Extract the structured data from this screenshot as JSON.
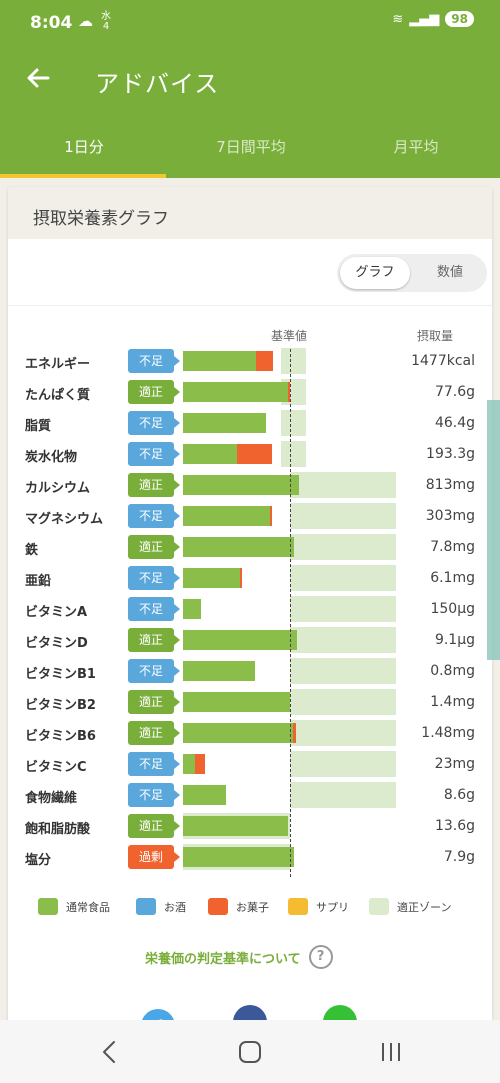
{
  "status_bar": {
    "time": "8:04",
    "weather": "☁",
    "day": "水",
    "day_num": "4",
    "wifi": "≋",
    "signal": "▂▄▆",
    "battery": "98"
  },
  "app_bar": {
    "title": "アドバイス"
  },
  "tabs": [
    {
      "label": "1日分",
      "active": true
    },
    {
      "label": "7日間平均",
      "active": false
    },
    {
      "label": "月平均",
      "active": false
    }
  ],
  "card": {
    "title": "摂取栄養素グラフ",
    "toggle": {
      "graph_label": "グラフ",
      "number_label": "数値",
      "selected": "グラフ"
    },
    "col_reference": "基準値",
    "col_intake": "摂取量"
  },
  "colors": {
    "food": "#8bbd4a",
    "alcohol": "#5aa7db",
    "snack": "#f0632f",
    "supplement": "#f5bc32",
    "zone": "#dcebcd",
    "brand": "#7aae3b",
    "over": "#f0632f"
  },
  "nutrients": [
    {
      "name": "エネルギー",
      "status": "不足",
      "status_type": "lack",
      "amount": "1477kcal",
      "food": 0.68,
      "snack": 0.16,
      "zone": [
        0.92,
        1.15
      ]
    },
    {
      "name": "たんぱく質",
      "status": "適正",
      "status_type": "ok",
      "amount": "77.6g",
      "food": 0.98,
      "snack": 0.01,
      "zone": [
        0.92,
        1.15
      ]
    },
    {
      "name": "脂質",
      "status": "不足",
      "status_type": "lack",
      "amount": "46.4g",
      "food": 0.78,
      "snack": 0.0,
      "zone": [
        0.92,
        1.15
      ]
    },
    {
      "name": "炭水化物",
      "status": "不足",
      "status_type": "lack",
      "amount": "193.3g",
      "food": 0.5,
      "snack": 0.33,
      "zone": [
        0.92,
        1.15
      ]
    },
    {
      "name": "カルシウム",
      "status": "適正",
      "status_type": "ok",
      "amount": "813mg",
      "food": 1.08,
      "snack": 0.0,
      "zone": [
        1.0,
        2.0
      ]
    },
    {
      "name": "マグネシウム",
      "status": "不足",
      "status_type": "lack",
      "amount": "303mg",
      "food": 0.81,
      "snack": 0.01,
      "zone": [
        1.0,
        2.0
      ]
    },
    {
      "name": "鉄",
      "status": "適正",
      "status_type": "ok",
      "amount": "7.8mg",
      "food": 1.04,
      "snack": 0.0,
      "zone": [
        1.0,
        2.0
      ]
    },
    {
      "name": "亜鉛",
      "status": "不足",
      "status_type": "lack",
      "amount": "6.1mg",
      "food": 0.53,
      "snack": 0.02,
      "zone": [
        1.0,
        2.0
      ]
    },
    {
      "name": "ビタミンA",
      "status": "不足",
      "status_type": "lack",
      "amount": "150µg",
      "food": 0.17,
      "snack": 0.0,
      "zone": [
        1.0,
        2.0
      ]
    },
    {
      "name": "ビタミンD",
      "status": "適正",
      "status_type": "ok",
      "amount": "9.1µg",
      "food": 1.07,
      "snack": 0.0,
      "zone": [
        1.0,
        2.0
      ]
    },
    {
      "name": "ビタミンB1",
      "status": "不足",
      "status_type": "lack",
      "amount": "0.8mg",
      "food": 0.67,
      "snack": 0.0,
      "zone": [
        1.0,
        2.0
      ]
    },
    {
      "name": "ビタミンB2",
      "status": "適正",
      "status_type": "ok",
      "amount": "1.4mg",
      "food": 1.0,
      "snack": 0.0,
      "zone": [
        1.0,
        2.0
      ]
    },
    {
      "name": "ビタミンB6",
      "status": "適正",
      "status_type": "ok",
      "amount": "1.48mg",
      "food": 1.03,
      "snack": 0.03,
      "zone": [
        1.0,
        2.0
      ]
    },
    {
      "name": "ビタミンC",
      "status": "不足",
      "status_type": "lack",
      "amount": "23mg",
      "food": 0.11,
      "snack": 0.1,
      "zone": [
        1.0,
        2.0
      ]
    },
    {
      "name": "食物繊維",
      "status": "不足",
      "status_type": "lack",
      "amount": "8.6g",
      "food": 0.4,
      "snack": 0.0,
      "zone": [
        1.0,
        2.0
      ]
    },
    {
      "name": "飽和脂肪酸",
      "status": "適正",
      "status_type": "ok",
      "amount": "13.6g",
      "food": 0.98,
      "snack": 0.0,
      "zone": [
        0.0,
        1.0
      ]
    },
    {
      "name": "塩分",
      "status": "過剰",
      "status_type": "over",
      "amount": "7.9g",
      "food": 1.04,
      "snack": 0.0,
      "zone": [
        0.0,
        1.0
      ]
    }
  ],
  "legend": [
    {
      "label": "通常食品",
      "color": "#8bbd4a"
    },
    {
      "label": "お酒",
      "color": "#5aa7db"
    },
    {
      "label": "お菓子",
      "color": "#f0632f"
    },
    {
      "label": "サプリ",
      "color": "#f5bc32"
    },
    {
      "label": "適正ゾーン",
      "color": "#dcebcd"
    }
  ],
  "criteria_link": "栄養価の判定基準について",
  "help_icon": "?",
  "share": {
    "twitter_icon": "twitter-icon",
    "facebook_icon": "facebook-icon",
    "line_icon": "line-icon"
  },
  "nav": {
    "back_icon": "back-icon",
    "home_icon": "home-icon",
    "recent_icon": "recent-apps-icon"
  }
}
